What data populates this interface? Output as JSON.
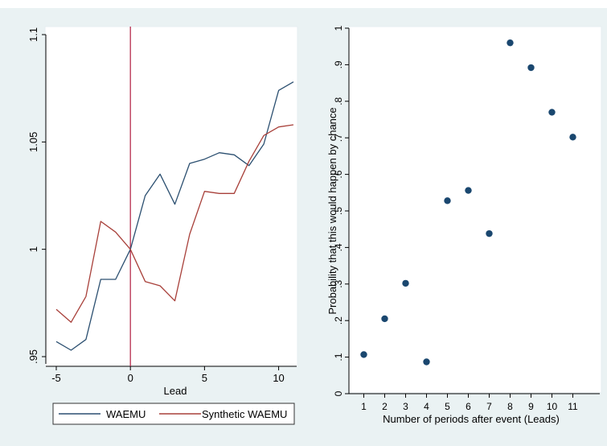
{
  "chart_data": [
    {
      "type": "line",
      "xlabel": "Lead",
      "ylabel": "",
      "xlim": [
        -5,
        11
      ],
      "ylim": [
        0.95,
        1.1
      ],
      "x_ticks": [
        -5,
        0,
        5,
        10
      ],
      "x_tick_labels": [
        "-5",
        "0",
        "5",
        "10"
      ],
      "y_ticks": [
        0.95,
        1,
        1.05,
        1.1
      ],
      "y_tick_labels": [
        ".95",
        "1",
        "1.05",
        "1.1"
      ],
      "vline": {
        "x": 0,
        "color": "#b01c40"
      },
      "x": [
        -5,
        -4,
        -3,
        -2,
        -1,
        0,
        1,
        2,
        3,
        4,
        5,
        6,
        7,
        8,
        9,
        10,
        11
      ],
      "series": [
        {
          "name": "WAEMU",
          "color": "#2b4f70",
          "values": [
            0.957,
            0.953,
            0.958,
            0.986,
            0.986,
            1.0,
            1.025,
            1.035,
            1.021,
            1.04,
            1.042,
            1.045,
            1.044,
            1.039,
            1.049,
            1.074,
            1.078
          ]
        },
        {
          "name": "Synthetic WAEMU",
          "color": "#a8403a",
          "values": [
            0.972,
            0.966,
            0.978,
            1.013,
            1.008,
            1.0,
            0.985,
            0.983,
            0.976,
            1.007,
            1.027,
            1.026,
            1.026,
            1.041,
            1.053,
            1.057,
            1.058
          ]
        }
      ],
      "legend": "bottom",
      "grid": false
    },
    {
      "type": "scatter",
      "xlabel": "Number of periods after event (Leads)",
      "ylabel": "Probability that this would happen by chance",
      "xlim": [
        0,
        12
      ],
      "ylim": [
        0,
        1
      ],
      "x_ticks": [
        1,
        2,
        3,
        4,
        5,
        6,
        7,
        8,
        9,
        10,
        11
      ],
      "x_tick_labels": [
        "1",
        "2",
        "3",
        "4",
        "5",
        "6",
        "7",
        "8",
        "9",
        "10",
        "11"
      ],
      "y_ticks": [
        0,
        0.1,
        0.2,
        0.3,
        0.4,
        0.5,
        0.6,
        0.7,
        0.8,
        0.9,
        1
      ],
      "y_tick_labels": [
        "0",
        ".1",
        ".2",
        ".3",
        ".4",
        ".5",
        ".6",
        ".7",
        ".8",
        ".9",
        "1"
      ],
      "point_color": "#1a476f",
      "x": [
        1,
        2,
        3,
        4,
        5,
        6,
        7,
        8,
        9,
        10,
        11
      ],
      "y": [
        0.107,
        0.205,
        0.302,
        0.087,
        0.528,
        0.556,
        0.438,
        0.96,
        0.892,
        0.77,
        0.702
      ],
      "grid": false
    }
  ]
}
